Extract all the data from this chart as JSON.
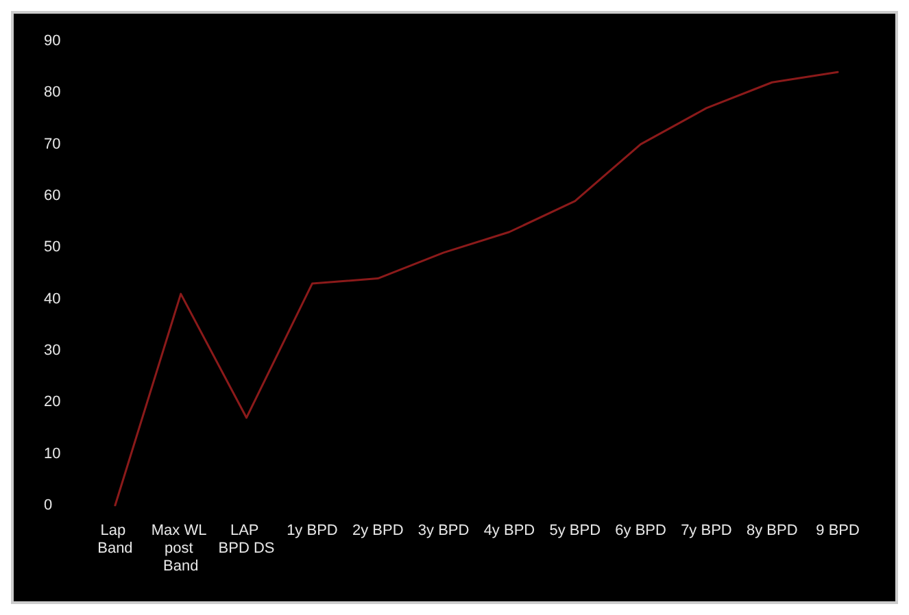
{
  "chart_data": {
    "type": "line",
    "categories": [
      "Lap Band",
      "Max WL post Band",
      "LAP BPD DS",
      "1y BPD",
      "2y BPD",
      "3y BPD",
      "4y BPD",
      "5y BPD",
      "6y BPD",
      "7y BPD",
      "8y BPD",
      "9 BPD"
    ],
    "series": [
      {
        "color": "#8b1a1a",
        "values": [
          0,
          41,
          17,
          43,
          44,
          49,
          53,
          59,
          70,
          77,
          82,
          84
        ]
      }
    ],
    "ylim": [
      0,
      90
    ],
    "yticks": [
      0,
      10,
      20,
      30,
      40,
      50,
      60,
      70,
      80,
      90
    ],
    "grid": false,
    "marker": "none",
    "line_style": "solid"
  }
}
